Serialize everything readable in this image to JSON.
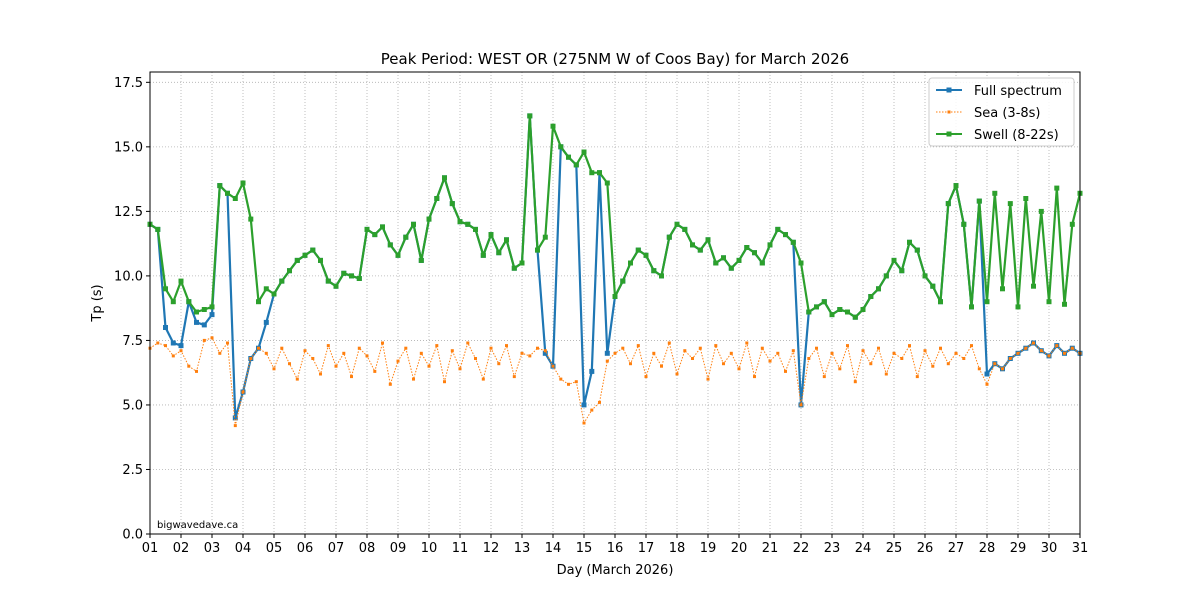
{
  "chart_data": {
    "type": "line",
    "title": "Peak Period: WEST OR (275NM W of Coos Bay) for March 2026",
    "xlabel": "Day (March 2026)",
    "ylabel": "Tp (s)",
    "xlim": [
      1,
      31
    ],
    "ylim": [
      0,
      17.9
    ],
    "grid": true,
    "legend_position": "top-right",
    "credit": "bigwavedave.ca",
    "x_ticks": [
      1,
      2,
      3,
      4,
      5,
      6,
      7,
      8,
      9,
      10,
      11,
      12,
      13,
      14,
      15,
      16,
      17,
      18,
      19,
      20,
      21,
      22,
      23,
      24,
      25,
      26,
      27,
      28,
      29,
      30,
      31
    ],
    "x_tick_labels": [
      "01",
      "02",
      "03",
      "04",
      "05",
      "06",
      "07",
      "08",
      "09",
      "10",
      "11",
      "12",
      "13",
      "14",
      "15",
      "16",
      "17",
      "18",
      "19",
      "20",
      "21",
      "22",
      "23",
      "24",
      "25",
      "26",
      "27",
      "28",
      "29",
      "30",
      "31"
    ],
    "y_ticks": [
      0,
      2.5,
      5,
      7.5,
      10,
      12.5,
      15,
      17.5
    ],
    "y_tick_labels": [
      "0.0",
      "2.5",
      "5.0",
      "7.5",
      "10.0",
      "12.5",
      "15.0",
      "17.5"
    ],
    "x_step_days": 0.25,
    "series": [
      {
        "name": "Full spectrum",
        "color": "#1f77b4",
        "style": "solid",
        "values": [
          12.0,
          11.8,
          8.0,
          7.4,
          7.3,
          9.0,
          8.2,
          8.1,
          8.5,
          13.5,
          13.2,
          4.5,
          5.5,
          6.8,
          7.2,
          8.2,
          9.3,
          9.8,
          10.2,
          10.6,
          10.8,
          11.0,
          10.6,
          9.8,
          9.6,
          10.1,
          10.0,
          9.9,
          11.8,
          11.6,
          11.9,
          11.2,
          10.8,
          11.5,
          12.0,
          10.6,
          12.2,
          13.0,
          13.8,
          12.8,
          12.1,
          12.0,
          11.8,
          10.8,
          11.6,
          10.9,
          11.4,
          10.3,
          10.5,
          16.2,
          11.0,
          7.0,
          6.5,
          15.0,
          14.6,
          14.3,
          5.0,
          6.3,
          14.0,
          7.0,
          9.2,
          9.8,
          10.5,
          11.0,
          10.8,
          10.2,
          10.0,
          11.5,
          12.0,
          11.8,
          11.2,
          11.0,
          11.4,
          10.5,
          10.7,
          10.3,
          10.6,
          11.1,
          10.9,
          10.5,
          11.2,
          11.8,
          11.6,
          11.3,
          5.0,
          8.6,
          8.8,
          9.0,
          8.5,
          8.7,
          8.6,
          8.4,
          8.7,
          9.2,
          9.5,
          10.0,
          10.6,
          10.2,
          11.3,
          11.0,
          10.0,
          9.6,
          9.0,
          12.8,
          13.5,
          12.0,
          8.8,
          12.9,
          6.2,
          6.6,
          6.4,
          6.8,
          7.0,
          7.2,
          7.4,
          7.1,
          6.9,
          7.3,
          7.0,
          7.2,
          7.0
        ]
      },
      {
        "name": "Sea (3-8s)",
        "color": "#ff7f0e",
        "style": "dotted",
        "values": [
          7.2,
          7.4,
          7.3,
          6.9,
          7.1,
          6.5,
          6.3,
          7.5,
          7.6,
          7.0,
          7.4,
          4.2,
          5.5,
          6.8,
          7.2,
          7.0,
          6.4,
          7.2,
          6.6,
          6.0,
          7.1,
          6.8,
          6.2,
          7.3,
          6.5,
          7.0,
          6.1,
          7.2,
          6.9,
          6.3,
          7.4,
          5.8,
          6.7,
          7.2,
          6.0,
          7.0,
          6.5,
          7.3,
          5.9,
          7.1,
          6.4,
          7.4,
          6.8,
          6.0,
          7.2,
          6.6,
          7.3,
          6.1,
          7.0,
          6.9,
          7.2,
          7.1,
          6.5,
          6.0,
          5.8,
          5.9,
          4.3,
          4.8,
          5.1,
          6.7,
          7.0,
          7.2,
          6.6,
          7.3,
          6.1,
          7.0,
          6.5,
          7.4,
          6.2,
          7.1,
          6.8,
          7.2,
          6.0,
          7.3,
          6.6,
          7.0,
          6.4,
          7.4,
          6.1,
          7.2,
          6.7,
          7.0,
          6.3,
          7.1,
          5.0,
          6.8,
          7.2,
          6.1,
          7.0,
          6.4,
          7.3,
          5.9,
          7.1,
          6.6,
          7.2,
          6.2,
          7.0,
          6.8,
          7.3,
          6.1,
          7.1,
          6.5,
          7.2,
          6.6,
          7.0,
          6.8,
          7.3,
          6.4,
          5.8,
          6.6,
          6.4,
          6.8,
          7.0,
          7.2,
          7.4,
          7.1,
          6.9,
          7.3,
          7.0,
          7.2,
          7.0
        ]
      },
      {
        "name": "Swell (8-22s)",
        "color": "#2ca02c",
        "style": "solid",
        "values": [
          12.0,
          11.8,
          9.5,
          9.0,
          9.8,
          9.0,
          8.6,
          8.7,
          8.8,
          13.5,
          13.2,
          13.0,
          13.6,
          12.2,
          9.0,
          9.5,
          9.3,
          9.8,
          10.2,
          10.6,
          10.8,
          11.0,
          10.6,
          9.8,
          9.6,
          10.1,
          10.0,
          9.9,
          11.8,
          11.6,
          11.9,
          11.2,
          10.8,
          11.5,
          12.0,
          10.6,
          12.2,
          13.0,
          13.8,
          12.8,
          12.1,
          12.0,
          11.8,
          10.8,
          11.6,
          10.9,
          11.4,
          10.3,
          10.5,
          16.2,
          11.0,
          11.5,
          15.8,
          15.0,
          14.6,
          14.3,
          14.8,
          14.0,
          14.0,
          13.6,
          9.2,
          9.8,
          10.5,
          11.0,
          10.8,
          10.2,
          10.0,
          11.5,
          12.0,
          11.8,
          11.2,
          11.0,
          11.4,
          10.5,
          10.7,
          10.3,
          10.6,
          11.1,
          10.9,
          10.5,
          11.2,
          11.8,
          11.6,
          11.3,
          10.5,
          8.6,
          8.8,
          9.0,
          8.5,
          8.7,
          8.6,
          8.4,
          8.7,
          9.2,
          9.5,
          10.0,
          10.6,
          10.2,
          11.3,
          11.0,
          10.0,
          9.6,
          9.0,
          12.8,
          13.5,
          12.0,
          8.8,
          12.9,
          9.0,
          13.2,
          9.5,
          12.8,
          8.8,
          13.0,
          9.6,
          12.5,
          9.0,
          13.4,
          8.9,
          12.0,
          13.2
        ]
      }
    ]
  }
}
